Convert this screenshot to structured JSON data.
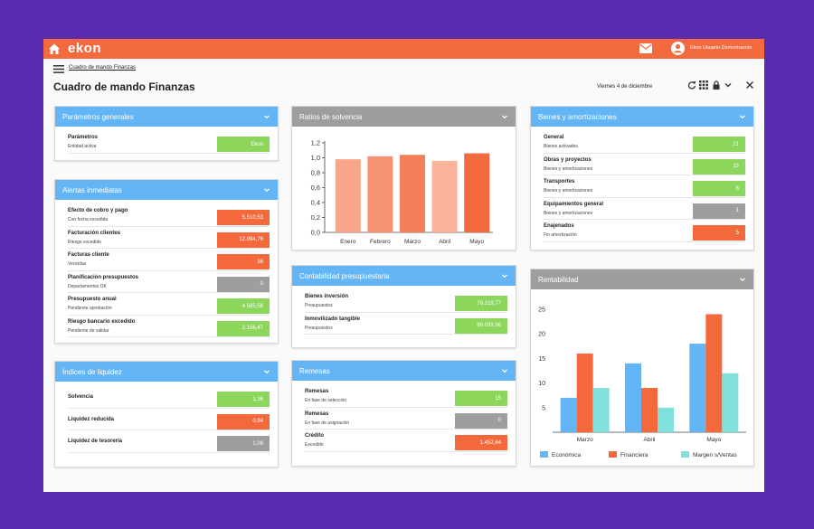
{
  "topbar": {
    "logo": "ekon",
    "user": "Ekon Usuario Demostración"
  },
  "breadcrumb": "Cuadro de mando Finanzas",
  "title": "Cuadro de mando Finanzas",
  "date": "Viernes 4 de diciembre",
  "colors": {
    "green": "#8bd65b",
    "red": "#f4693c",
    "grey": "#9e9e9e",
    "blue_header": "#64b5f6",
    "grey_header": "#9e9e9e"
  },
  "cards": {
    "parametros": {
      "title": "Parámetros generales",
      "rows": [
        {
          "label": "Parámetros",
          "sub": "Entidad activa",
          "value": "Ekon",
          "status": "green"
        }
      ]
    },
    "alertas": {
      "title": "Alertas inmediatas",
      "rows": [
        {
          "label": "Efecto de cobro y pago",
          "sub": "Con fecha excedida",
          "value": "5.510,53",
          "status": "red"
        },
        {
          "label": "Facturación clientes",
          "sub": "Riesgo excedido",
          "value": "12.894,76",
          "status": "red"
        },
        {
          "label": "Facturas cliente",
          "sub": "Vencidas",
          "value": "36",
          "status": "red"
        },
        {
          "label": "Planificación presupuestos",
          "sub": "Departamentos OK",
          "value": "0",
          "status": "grey"
        },
        {
          "label": "Presupuesto anual",
          "sub": "Pendiente aprobación",
          "value": "4.585,56",
          "status": "green"
        },
        {
          "label": "Riesgo bancario excedido",
          "sub": "Pendiente de validar",
          "value": "2.156,47",
          "status": "green"
        }
      ]
    },
    "liquidez": {
      "title": "Índices de liquidez",
      "rows": [
        {
          "label": "Solvencia",
          "sub": "",
          "value": "1,36",
          "status": "green"
        },
        {
          "label": "Liquidez reducida",
          "sub": "",
          "value": "0,94",
          "status": "red"
        },
        {
          "label": "Liquidez de tesorería",
          "sub": "",
          "value": "1,06",
          "status": "grey"
        }
      ]
    },
    "ratios": {
      "title": "Ratios de solvencia"
    },
    "contabilidad": {
      "title": "Contabilidad presupuestaria",
      "rows": [
        {
          "label": "Bienes inversión",
          "sub": "Presupuestos",
          "value": "78.219,77",
          "status": "green"
        },
        {
          "label": "Inmovilizado tangible",
          "sub": "Presupuestos",
          "value": "86.039,96",
          "status": "green"
        }
      ]
    },
    "remesas": {
      "title": "Remesas",
      "rows": [
        {
          "label": "Remesas",
          "sub": "En fase de selección",
          "value": "15",
          "status": "green"
        },
        {
          "label": "Remesas",
          "sub": "En fase de asignación",
          "value": "0",
          "status": "grey"
        },
        {
          "label": "Crédito",
          "sub": "Excedido",
          "value": "1.452,64",
          "status": "red"
        }
      ]
    },
    "bienes": {
      "title": "Bienes y amortizaciones",
      "rows": [
        {
          "label": "General",
          "sub": "Bienes activados",
          "value": "21",
          "status": "green"
        },
        {
          "label": "Obras y proyectos",
          "sub": "Bienes y amortizaciones",
          "value": "15",
          "status": "green"
        },
        {
          "label": "Transportes",
          "sub": "Bienes y amortizaciones",
          "value": "6",
          "status": "green"
        },
        {
          "label": "Equipamientos general",
          "sub": "Bienes y amortizaciones",
          "value": "1",
          "status": "grey"
        },
        {
          "label": "Enajenados",
          "sub": "Fin amortización",
          "value": "5",
          "status": "red"
        }
      ]
    },
    "rentabilidad": {
      "title": "Rentabilidad"
    }
  },
  "chart_data": [
    {
      "type": "bar",
      "categories": [
        "Enero",
        "Febrero",
        "Marzo",
        "Abril",
        "Mayo"
      ],
      "values": [
        0.98,
        1.02,
        1.04,
        0.96,
        1.06
      ],
      "colors": [
        "#f8a588",
        "#f69172",
        "#f47f59",
        "#fbb49c",
        "#f26a3d"
      ],
      "ylim": [
        0,
        1.2
      ],
      "yticks": [
        "0,0",
        "0,2",
        "0,4",
        "0,6",
        "0,8",
        "1,0",
        "1,2"
      ],
      "grid": false
    },
    {
      "type": "bar",
      "categories": [
        "Marzo",
        "Abril",
        "Mayo"
      ],
      "series": [
        {
          "name": "Económica",
          "values": [
            7,
            14,
            18
          ],
          "color": "#64b5f6"
        },
        {
          "name": "Financiera",
          "values": [
            16,
            9,
            24
          ],
          "color": "#f4693c"
        },
        {
          "name": "Margen s/Ventas",
          "values": [
            9,
            5,
            12
          ],
          "color": "#80e0dc"
        }
      ],
      "ylim": [
        0,
        25
      ],
      "yticks": [
        "5",
        "10",
        "15",
        "20",
        "25"
      ],
      "grid": false,
      "legend": "bottom"
    }
  ]
}
